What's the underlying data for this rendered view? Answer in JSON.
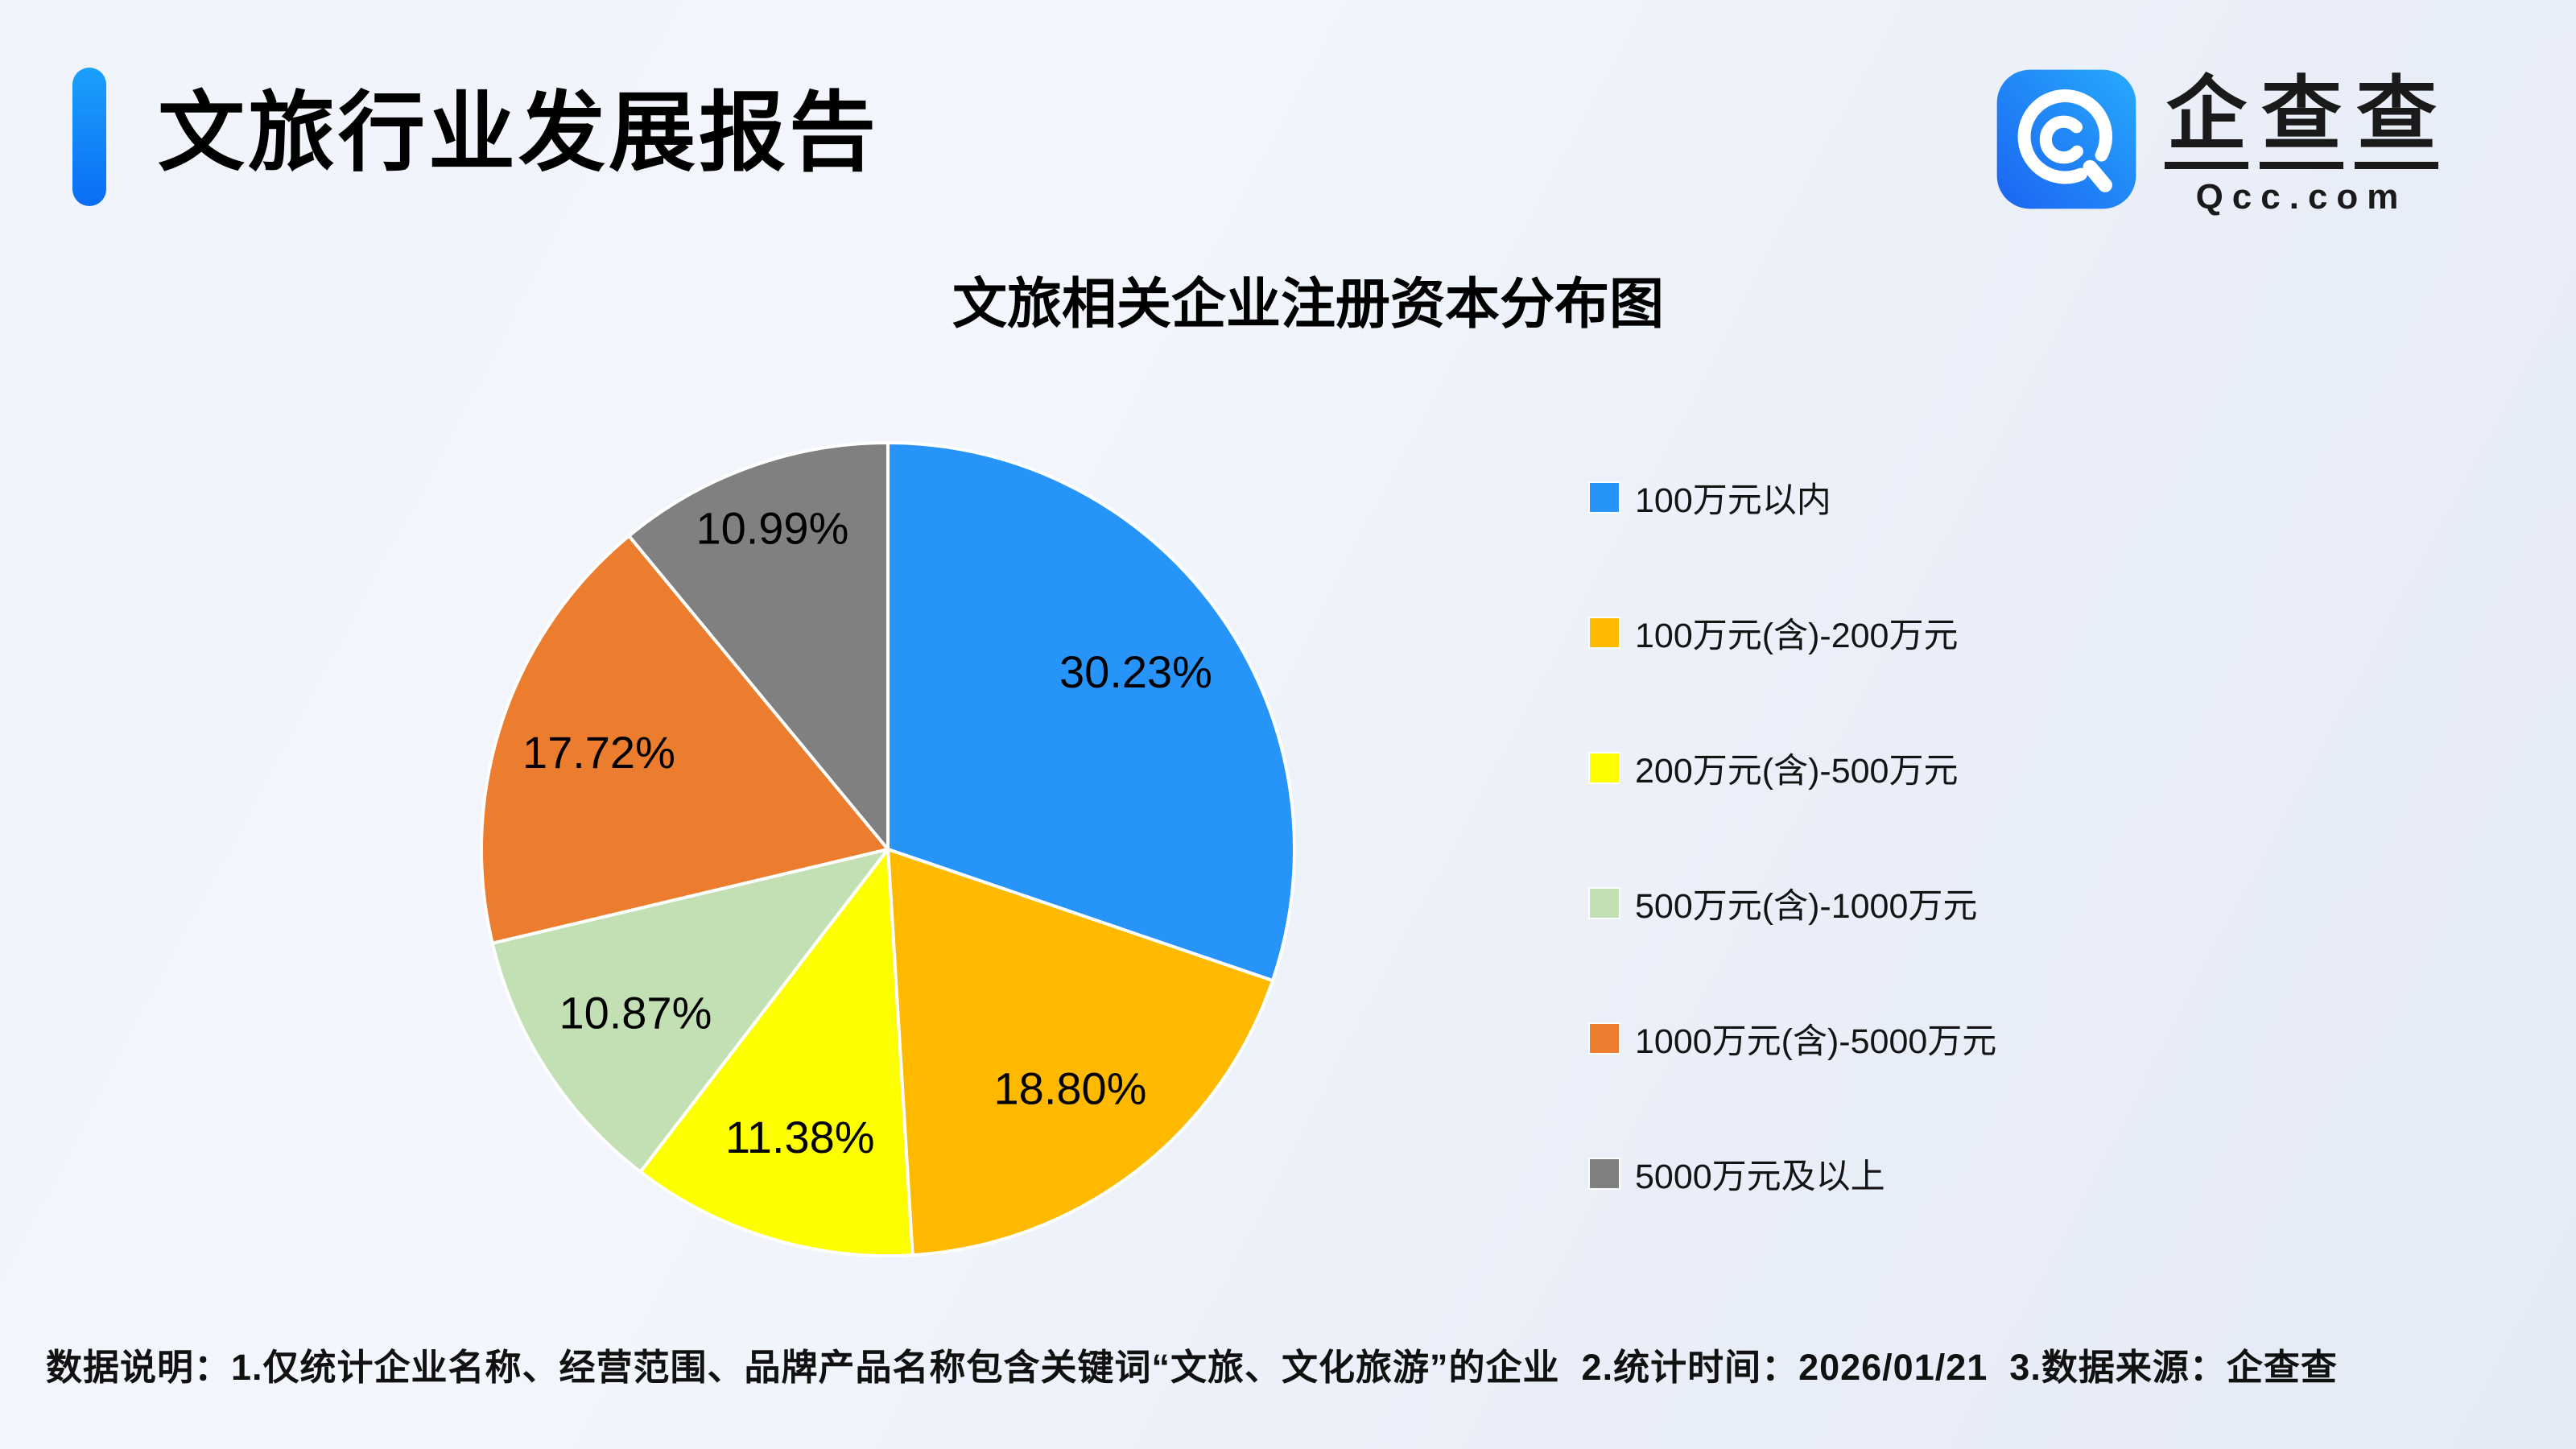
{
  "header": {
    "title": "文旅行业发展报告"
  },
  "logo": {
    "icon": "qcc-magnifier-icon",
    "brand_cn": "企查查",
    "brand_en": "Qcc.com",
    "icon_gradient": [
      "#1b64f1",
      "#27aafd"
    ]
  },
  "chart": {
    "title": "文旅相关企业注册资本分布图"
  },
  "chart_data": {
    "type": "pie",
    "title": "文旅相关企业注册资本分布图",
    "unit": "percent",
    "start_angle_deg": 0,
    "direction": "clockwise",
    "legend_position": "right",
    "slice_border_color": "#ffffff",
    "label_radius": [
      0.75,
      0.74,
      0.74,
      0.74,
      0.75,
      0.84
    ],
    "slices": [
      {
        "label": "100万元以内",
        "value": 30.23,
        "display": "30.23%",
        "color": "#2794fa"
      },
      {
        "label": "100万元(含)-200万元",
        "value": 18.8,
        "display": "18.80%",
        "color": "#ffba00"
      },
      {
        "label": "200万元(含)-500万元",
        "value": 11.38,
        "display": "11.38%",
        "color": "#fdfe00"
      },
      {
        "label": "500万元(含)-1000万元",
        "value": 10.87,
        "display": "10.87%",
        "color": "#c3dfb4"
      },
      {
        "label": "1000万元(含)-5000万元",
        "value": 17.72,
        "display": "17.72%",
        "color": "#ec7d2e"
      },
      {
        "label": "5000万元及以上",
        "value": 10.99,
        "display": "10.99%",
        "color": "#808080"
      }
    ]
  },
  "footer": {
    "note": "数据说明：1.仅统计企业名称、经营范围、品牌产品名称包含关键词“文旅、文化旅游”的企业  2.统计时间：2026/01/21  3.数据来源：企查查"
  }
}
